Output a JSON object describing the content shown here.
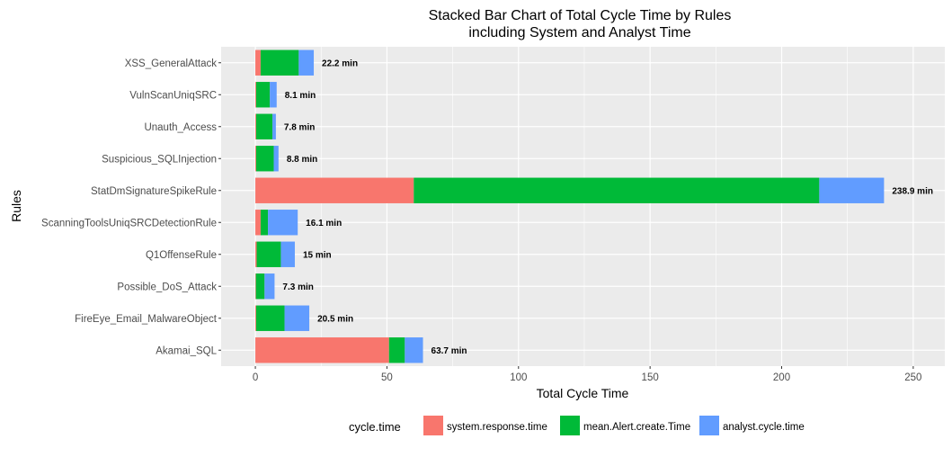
{
  "chart_data": {
    "type": "bar",
    "orientation": "horizontal",
    "stacked": true,
    "title": [
      "Stacked Bar Chart of Total Cycle Time by Rules",
      "including System and Analyst Time"
    ],
    "xlabel": "Total Cycle Time",
    "ylabel": "Rules",
    "xlim": [
      -13,
      262
    ],
    "xticks": [
      0,
      50,
      100,
      150,
      200,
      250
    ],
    "grid": true,
    "legend": {
      "title": "cycle.time",
      "position": "bottom"
    },
    "categories": [
      "XSS_GeneralAttack",
      "VulnScanUniqSRC",
      "Unauth_Access",
      "Suspicious_SQLInjection",
      "StatDmSignatureSpikeRule",
      "ScanningToolsUniqSRCDetectionRule",
      "Q1OffenseRule",
      "Possible_DoS_Attack",
      "FireEye_Email_MalwareObject",
      "Akamai_SQL"
    ],
    "series": [
      {
        "name": "system.response.time",
        "color": "#F8766D",
        "values": [
          2,
          0.3,
          0.3,
          0.3,
          60.2,
          2,
          0.5,
          0.2,
          0.3,
          50.8
        ]
      },
      {
        "name": "mean.Alert.create.Time",
        "color": "#00BA38",
        "values": [
          14.5,
          5.2,
          6.2,
          6.7,
          154.1,
          2.8,
          9.2,
          3.3,
          10.8,
          6
        ]
      },
      {
        "name": "analyst.cycle.time",
        "color": "#619CFF",
        "values": [
          5.7,
          2.6,
          1.3,
          1.8,
          24.6,
          11.3,
          5.3,
          3.8,
          9.4,
          6.9
        ]
      }
    ],
    "totals": [
      22.2,
      8.1,
      7.8,
      8.8,
      238.9,
      16.1,
      15,
      7.3,
      20.5,
      63.7
    ],
    "data_labels": [
      "22.2 min",
      "8.1 min",
      "7.8 min",
      "8.8 min",
      "238.9 min",
      "16.1 min",
      "15 min",
      "7.3 min",
      "20.5 min",
      "63.7 min"
    ]
  }
}
